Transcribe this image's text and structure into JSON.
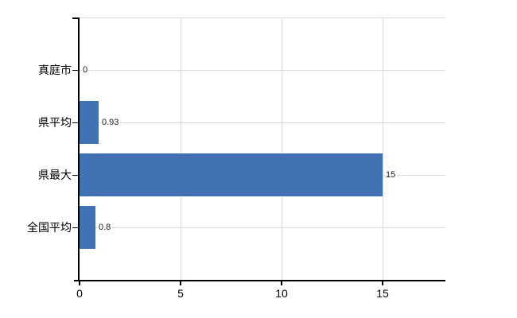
{
  "chart_data": {
    "type": "bar",
    "orientation": "horizontal",
    "title": "",
    "categories": [
      "真庭市",
      "県平均",
      "県最大",
      "全国平均"
    ],
    "values": [
      0,
      0.93,
      15,
      0.8
    ],
    "value_labels": [
      "0",
      "0.93",
      "15",
      "0.8"
    ],
    "xticks": [
      0,
      5,
      10,
      15
    ],
    "xtick_labels": [
      "0",
      "5",
      "10",
      "15"
    ],
    "xlim": [
      0,
      18.1
    ],
    "grid": true,
    "legend": false,
    "bar_color": "#4173b4",
    "grid_color": "#d9d9d9",
    "axis_color": "#000000",
    "label_color": "#000000",
    "background_color": "#ffffff"
  }
}
